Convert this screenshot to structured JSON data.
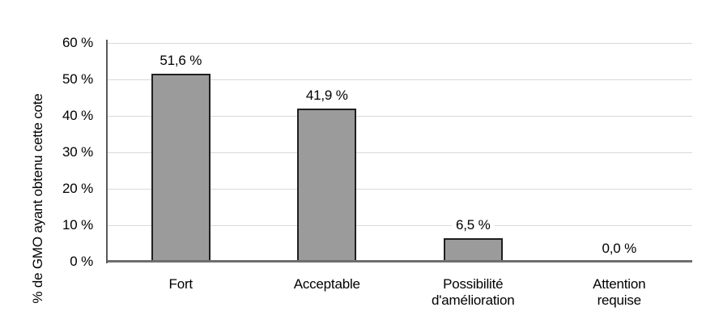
{
  "chart_data": {
    "type": "bar",
    "title": "",
    "xlabel": "",
    "ylabel": "% de GMO ayant obtenu cette cote",
    "ylim": [
      0,
      60
    ],
    "ytick_step": 10,
    "grid": true,
    "legend": "none",
    "categories": [
      "Fort",
      "Acceptable",
      "Possibilité d'amélioration",
      "Attention requise"
    ],
    "category_lines": [
      [
        "Fort"
      ],
      [
        "Acceptable"
      ],
      [
        "Possibilité",
        "d'amélioration"
      ],
      [
        "Attention",
        "requise"
      ]
    ],
    "values": [
      51.6,
      41.9,
      6.5,
      0.0
    ],
    "value_labels": [
      "51,6 %",
      "41,9 %",
      "6,5 %",
      "0,0 %"
    ],
    "yticks": [
      "0 %",
      "10 %",
      "20 %",
      "30 %",
      "40 %",
      "50 %",
      "60 %"
    ]
  },
  "style": {
    "background": "#ffffff",
    "bar_fill": "#9b9b9b",
    "bar_border": "#1f1f1f",
    "gridline_color": "#d9d9d9",
    "y_axis_color": "#595959",
    "x_axis_color": "#6e6e6e",
    "text_color": "#000000",
    "value_label_bg": "#ffffff"
  }
}
